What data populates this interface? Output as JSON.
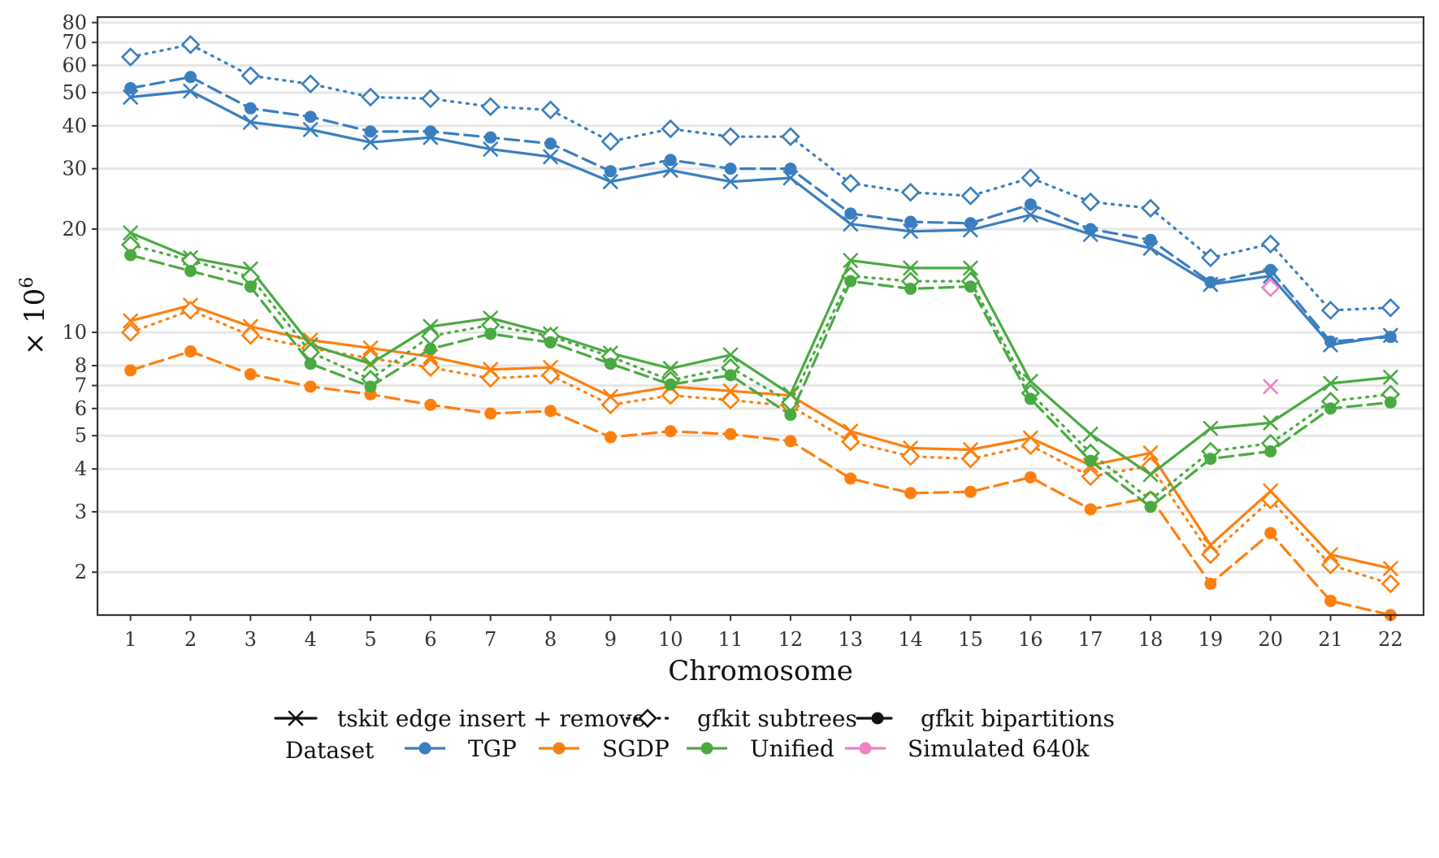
{
  "chart_data": {
    "type": "line",
    "title": "",
    "xlabel": "Chromosome",
    "ylabel": "× 10^6",
    "ylabel_base": "× 10",
    "ylabel_exp": "6",
    "y_scale": "log",
    "ylim": [
      1.5,
      83
    ],
    "xlim": [
      0.45,
      22.55
    ],
    "y_ticks": [
      2,
      3,
      4,
      5,
      6,
      7,
      8,
      10,
      20,
      30,
      40,
      50,
      60,
      70,
      80
    ],
    "y_tick_labels": [
      "2",
      "3",
      "4",
      "5",
      "6",
      "7",
      "8",
      "10",
      "20",
      "30",
      "40",
      "50",
      "60",
      "70",
      "80"
    ],
    "x": [
      1,
      2,
      3,
      4,
      5,
      6,
      7,
      8,
      9,
      10,
      11,
      12,
      13,
      14,
      15,
      16,
      17,
      18,
      19,
      20,
      21,
      22
    ],
    "x_tick_labels": [
      "1",
      "2",
      "3",
      "4",
      "5",
      "6",
      "7",
      "8",
      "9",
      "10",
      "11",
      "12",
      "13",
      "14",
      "15",
      "16",
      "17",
      "18",
      "19",
      "20",
      "21",
      "22"
    ],
    "grid": "horizontal major",
    "legend_placement": "bottom",
    "methods": [
      {
        "key": "tskit",
        "label": "tskit edge insert + remove",
        "dash": "solid",
        "marker": "x"
      },
      {
        "key": "subtrees",
        "label": "gfkit subtrees",
        "dash": "dotted",
        "marker": "diamond"
      },
      {
        "key": "bipartitions",
        "label": "gfkit bipartitions",
        "dash": "dashed",
        "marker": "dot"
      }
    ],
    "datasets": [
      {
        "key": "TGP",
        "label": "TGP",
        "color": "#3a7ebf"
      },
      {
        "key": "SGDP",
        "label": "SGDP",
        "color": "#ff7f0e"
      },
      {
        "key": "Unified",
        "label": "Unified",
        "color": "#4aaa42"
      },
      {
        "key": "Simulated",
        "label": "Simulated 640k",
        "color": "#f07fc4"
      }
    ],
    "legend_title": "Dataset",
    "series": [
      {
        "dataset": "TGP",
        "method": "tskit",
        "values": [
          48.5,
          50.5,
          41,
          39,
          35.8,
          37,
          34.2,
          32.5,
          27.5,
          29.7,
          27.5,
          28.2,
          20.7,
          19.7,
          19.9,
          22,
          19.3,
          17.6,
          13.8,
          14.6,
          9.2,
          9.8
        ]
      },
      {
        "dataset": "TGP",
        "method": "subtrees",
        "values": [
          63.5,
          69,
          56,
          53,
          48.5,
          48,
          45.5,
          44.5,
          36,
          39.2,
          37.2,
          37.2,
          27.2,
          25.6,
          25,
          28.2,
          24,
          23,
          16.5,
          18.1,
          11.6,
          11.8
        ]
      },
      {
        "dataset": "TGP",
        "method": "bipartitions",
        "values": [
          51.5,
          55.5,
          45,
          42.5,
          38.5,
          38.5,
          37,
          35.5,
          29.5,
          31.8,
          30,
          30,
          22.2,
          21,
          20.8,
          23.6,
          20,
          18.6,
          14,
          15.2,
          9.4,
          9.7
        ]
      },
      {
        "dataset": "SGDP",
        "method": "tskit",
        "values": [
          10.8,
          12,
          10.4,
          9.5,
          9,
          8.5,
          7.8,
          7.9,
          6.5,
          6.95,
          6.75,
          6.55,
          5.15,
          4.6,
          4.55,
          4.92,
          4.1,
          4.45,
          2.4,
          3.45,
          2.25,
          2.05
        ]
      },
      {
        "dataset": "SGDP",
        "method": "subtrees",
        "values": [
          10,
          11.6,
          9.8,
          9,
          8.4,
          7.9,
          7.35,
          7.5,
          6.15,
          6.55,
          6.35,
          6.1,
          4.8,
          4.35,
          4.28,
          4.68,
          3.8,
          4.08,
          2.25,
          3.25,
          2.1,
          1.85
        ]
      },
      {
        "dataset": "SGDP",
        "method": "bipartitions",
        "values": [
          7.75,
          8.8,
          7.55,
          6.95,
          6.6,
          6.15,
          5.8,
          5.9,
          4.95,
          5.15,
          5.05,
          4.82,
          3.75,
          3.4,
          3.43,
          3.78,
          3.05,
          3.3,
          1.85,
          2.6,
          1.65,
          1.5
        ]
      },
      {
        "dataset": "Unified",
        "method": "tskit",
        "values": [
          19.5,
          16.5,
          15.3,
          9.2,
          8.1,
          10.4,
          11,
          9.9,
          8.7,
          7.85,
          8.6,
          6.6,
          16.2,
          15.4,
          15.4,
          7.2,
          5.05,
          3.85,
          5.25,
          5.45,
          7.1,
          7.4
        ]
      },
      {
        "dataset": "Unified",
        "method": "subtrees",
        "values": [
          18,
          16.2,
          14.5,
          8.75,
          7.3,
          9.75,
          10.5,
          9.75,
          8.5,
          7.25,
          7.9,
          6.25,
          14.6,
          14.1,
          14.1,
          6.65,
          4.45,
          3.25,
          4.5,
          4.75,
          6.3,
          6.6
        ]
      },
      {
        "dataset": "Unified",
        "method": "bipartitions",
        "values": [
          16.8,
          15.1,
          13.6,
          8.1,
          6.95,
          8.95,
          9.9,
          9.35,
          8.1,
          7.05,
          7.5,
          5.75,
          14.1,
          13.4,
          13.6,
          6.4,
          4.22,
          3.1,
          4.28,
          4.5,
          6,
          6.25
        ]
      },
      {
        "dataset": "Simulated",
        "method": "tskit",
        "x": [
          20
        ],
        "values": [
          6.95
        ]
      },
      {
        "dataset": "Simulated",
        "method": "subtrees",
        "x": [
          20
        ],
        "values": [
          13.5
        ]
      }
    ]
  }
}
